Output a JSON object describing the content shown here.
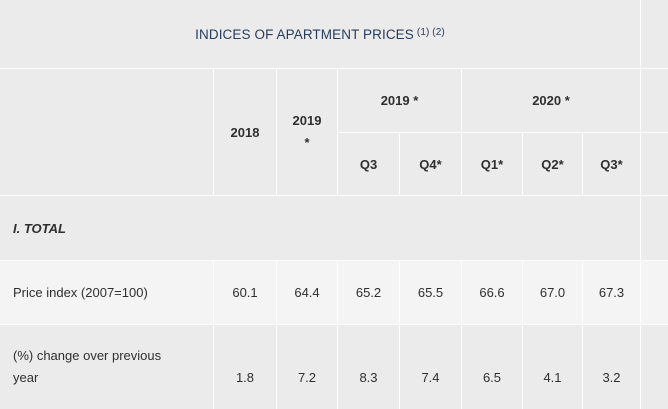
{
  "table": {
    "title": "INDICES OF APARTMENT PRICES",
    "title_notes": "(1) (2)",
    "header": {
      "col_2018": "2018",
      "col_2019_line1": "2019",
      "col_2019_line2": "*",
      "group_2019": "2019 *",
      "group_2020": "2020 *",
      "q3_2019": "Q3",
      "q4_2019": "Q4*",
      "q1_2020": "Q1*",
      "q2_2020": "Q2*",
      "q3_2020": "Q3*"
    },
    "section_label": "I. TOTAL",
    "rows": [
      {
        "label": "Price index (2007=100)",
        "values": [
          "60.1",
          "64.4",
          "65.2",
          "65.5",
          "66.6",
          "67.0",
          "67.3"
        ]
      },
      {
        "label_line1": "(%) change over previous",
        "label_line2": "year",
        "values": [
          "1.8",
          "7.2",
          "8.3",
          "7.4",
          "6.5",
          "4.1",
          "3.2"
        ]
      }
    ]
  }
}
